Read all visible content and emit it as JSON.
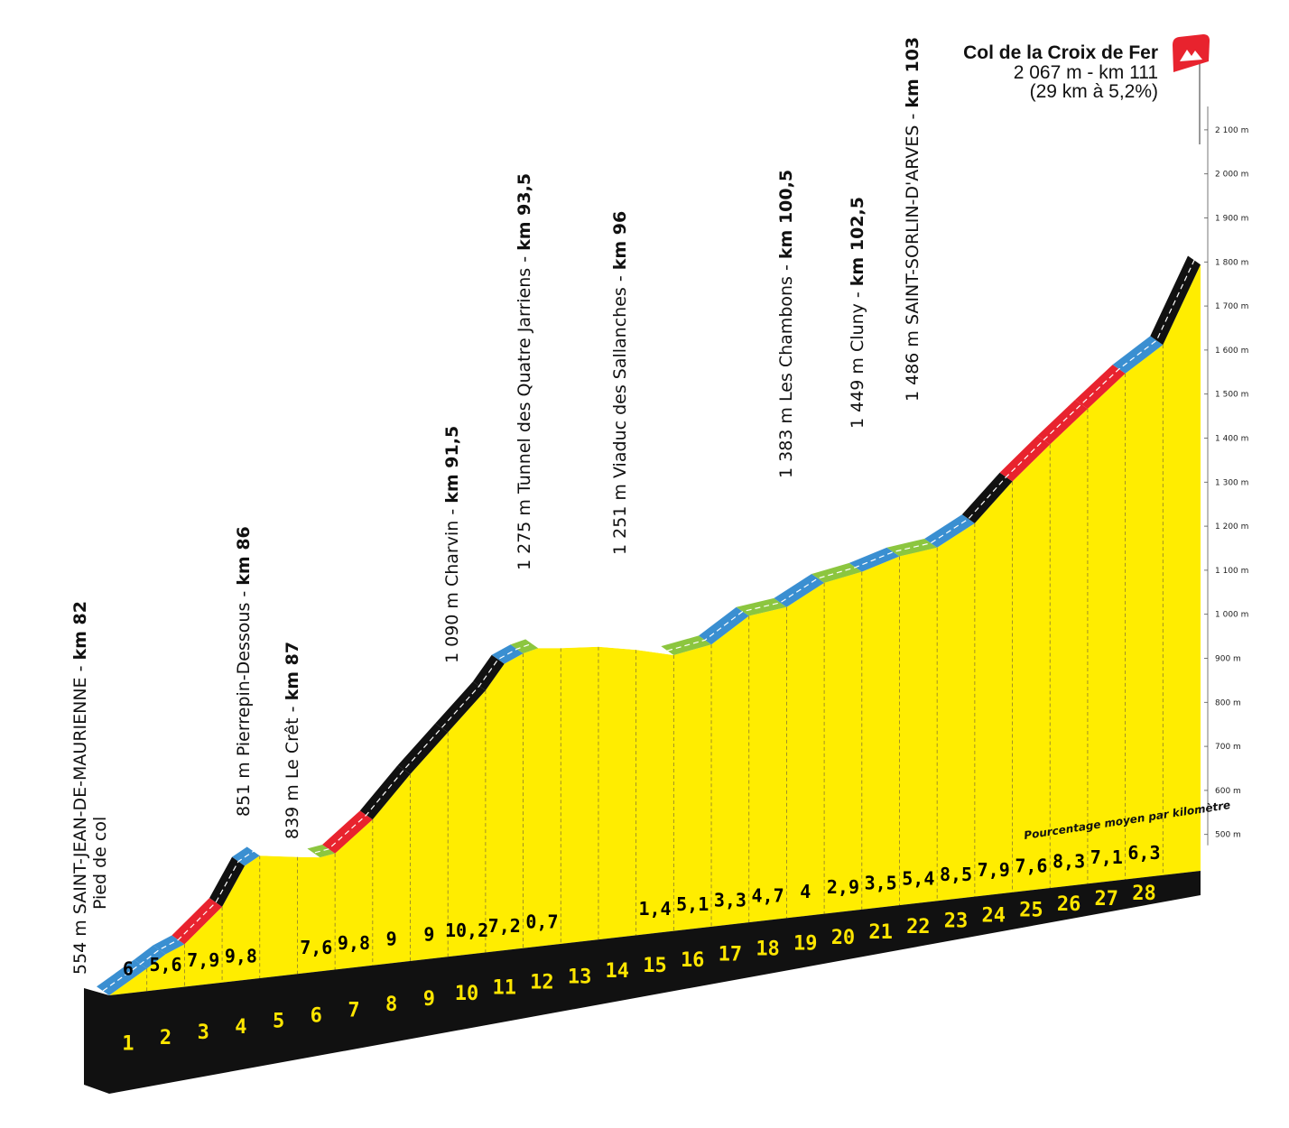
{
  "chart_data": {
    "type": "area",
    "title": "Col de la Croix de Fer",
    "summit": {
      "name": "Col de la Croix de Fer",
      "line2": "2 067 m - km 111",
      "line3": "(29 km à 5,2%)"
    },
    "y_axis": {
      "unit": "m",
      "range": [
        500,
        2100
      ],
      "tick_labels": [
        "500 m",
        "600 m",
        "700 m",
        "800 m",
        "900 m",
        "1 000 m",
        "1 100 m",
        "1 200 m",
        "1 300 m",
        "1 400 m",
        "1 500 m",
        "1 600 m",
        "1 700 m",
        "1 800 m",
        "1 900 m",
        "2 000 m",
        "2 100 m"
      ]
    },
    "x_axis": {
      "label": "km",
      "range": [
        0,
        29
      ],
      "km_markers": [
        "1",
        "2",
        "3",
        "4",
        "5",
        "6",
        "7",
        "8",
        "9",
        "10",
        "11",
        "12",
        "13",
        "14",
        "15",
        "16",
        "17",
        "18",
        "19",
        "20",
        "21",
        "22",
        "23",
        "24",
        "25",
        "26",
        "27",
        "28"
      ]
    },
    "gradient_legend": "Pourcentage moyen par kilomètre",
    "gradients_per_km": [
      "6",
      "5,6",
      "7,9",
      "9,8",
      "",
      "7,6",
      "9,8",
      "9",
      "9",
      "10,2",
      "7,2",
      "0,7",
      "",
      "",
      "1,4",
      "5,1",
      "3,3",
      "4,7",
      "4",
      "2,9",
      "3,5",
      "5,4",
      "8,5",
      "7,9",
      "7,6",
      "8,3",
      "7,1",
      "6,3"
    ],
    "profile": {
      "x": [
        0,
        1,
        1.5,
        2,
        3,
        3.6,
        4,
        5,
        5.6,
        6,
        7,
        8,
        9,
        10,
        10.5,
        11,
        11.4,
        12,
        13,
        14,
        15,
        16,
        17,
        18,
        19,
        20,
        21,
        22,
        23,
        24,
        25,
        26,
        27,
        28,
        29
      ],
      "y": [
        554,
        610,
        640,
        660,
        740,
        830,
        851,
        843,
        839,
        846,
        918,
        1016,
        1106,
        1196,
        1254,
        1275,
        1285,
        1282,
        1280,
        1268,
        1251,
        1270,
        1330,
        1345,
        1395,
        1415,
        1445,
        1460,
        1510,
        1600,
        1679,
        1755,
        1830,
        1890,
        2067
      ]
    },
    "segment_colors": {
      "5-7%": "#3a8fd1",
      "7-9%": "#e8232e",
      "over 9%": "#111111",
      "0-3%": "#8cc63f",
      "descent": "#ffffff",
      "fill": "#ffed00"
    },
    "annotations": [
      {
        "pre": "554 m SAINT-JEAN-DE-MAURIENNE - ",
        "km": "km 82",
        "line2": "Pied de col"
      },
      {
        "pre": "851 m Pierrepin-Dessous - ",
        "km": "km 86"
      },
      {
        "pre": "839 m Le Crêt - ",
        "km": "km 87"
      },
      {
        "pre": "1 090 m Charvin - ",
        "km": "km 91,5"
      },
      {
        "pre": "1 275 m Tunnel des Quatre Jarriens - ",
        "km": "km 93,5"
      },
      {
        "pre": "1 251 m Viaduc des Sallanches - ",
        "km": "km 96"
      },
      {
        "pre": "1 383 m Les Chambons - ",
        "km": "km 100,5"
      },
      {
        "pre": "1 449 m Cluny - ",
        "km": "km 102,5"
      },
      {
        "pre": "1 486 m SAINT-SORLIN-D'ARVES - ",
        "km": "km 103"
      }
    ]
  }
}
